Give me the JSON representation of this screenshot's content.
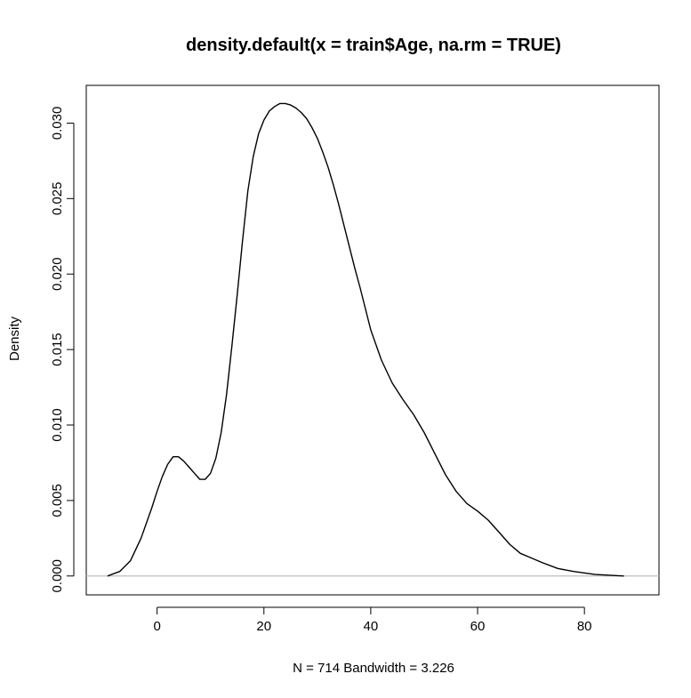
{
  "chart_data": {
    "type": "line",
    "title": "density.default(x = train$Age, na.rm = TRUE)",
    "xlabel": "N = 714   Bandwidth = 3.226",
    "ylabel": "Density",
    "xlim": [
      -13.258,
      93.958
    ],
    "ylim": [
      -0.00125,
      0.0325
    ],
    "x_ticks": [
      0,
      20,
      40,
      60,
      80
    ],
    "x_tick_labels": [
      "0",
      "20",
      "40",
      "60",
      "80"
    ],
    "y_ticks": [
      0.0,
      0.005,
      0.01,
      0.015,
      0.02,
      0.025,
      0.03
    ],
    "y_tick_labels": [
      "0.000",
      "0.005",
      "0.010",
      "0.015",
      "0.020",
      "0.025",
      "0.030"
    ],
    "baseline": 0,
    "grid": false,
    "legend": "none",
    "colors": {
      "line": "#000000",
      "baseline": "#bebebe",
      "axis": "#000000"
    },
    "series": [
      {
        "x": [
          -9.26,
          -7,
          -5,
          -3,
          -1,
          0,
          1,
          2,
          3,
          4,
          5,
          6,
          7,
          8,
          9,
          10,
          11,
          12,
          13,
          14,
          15,
          16,
          17,
          18,
          19,
          20,
          21,
          22,
          23,
          24,
          25,
          26,
          27,
          28,
          29,
          30,
          31,
          32,
          33,
          34,
          35,
          36,
          37,
          38,
          40,
          42,
          44,
          46,
          48,
          50,
          52,
          54,
          56,
          58,
          60,
          62,
          64,
          66,
          68,
          70,
          72,
          75,
          78,
          82,
          87.4
        ],
        "y": [
          0.0,
          0.0003,
          0.001,
          0.0025,
          0.0045,
          0.0056,
          0.0066,
          0.0074,
          0.0079,
          0.0079,
          0.0076,
          0.0072,
          0.0068,
          0.0064,
          0.0064,
          0.0068,
          0.0078,
          0.0095,
          0.012,
          0.0152,
          0.0186,
          0.0222,
          0.0255,
          0.0278,
          0.0293,
          0.0302,
          0.0308,
          0.0311,
          0.0313,
          0.0313,
          0.0312,
          0.031,
          0.0307,
          0.0303,
          0.0297,
          0.029,
          0.0281,
          0.0271,
          0.0259,
          0.0246,
          0.0232,
          0.0218,
          0.0204,
          0.0191,
          0.0163,
          0.0143,
          0.0128,
          0.0117,
          0.0107,
          0.0095,
          0.0081,
          0.0067,
          0.0056,
          0.0048,
          0.0043,
          0.0037,
          0.0029,
          0.0021,
          0.0015,
          0.0012,
          0.0009,
          0.0005,
          0.0003,
          0.0001,
          0.0
        ]
      }
    ]
  }
}
